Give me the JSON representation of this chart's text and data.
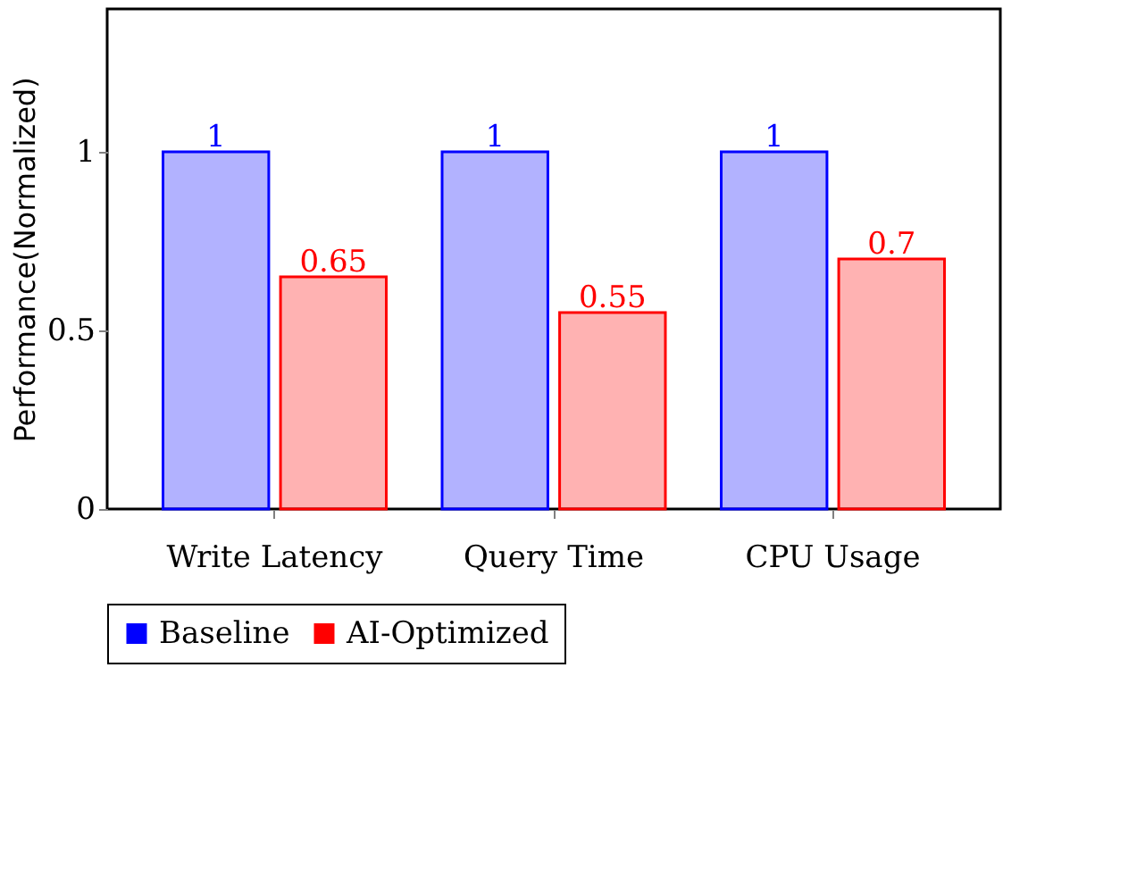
{
  "chart_data": {
    "type": "bar",
    "ylabel": "Performance(Normalized)",
    "categories": [
      "Write Latency",
      "Query Time",
      "CPU Usage"
    ],
    "series": [
      {
        "name": "Baseline",
        "color": "#0000ff",
        "values": [
          1,
          1,
          1
        ]
      },
      {
        "name": "AI-Optimized",
        "color": "#ff0000",
        "values": [
          0.65,
          0.55,
          0.7
        ]
      }
    ],
    "ylim": [
      0,
      1.4
    ],
    "yticks": [
      0,
      0.5,
      1
    ],
    "grid": false,
    "legend": "bottom",
    "data_labels": true
  }
}
